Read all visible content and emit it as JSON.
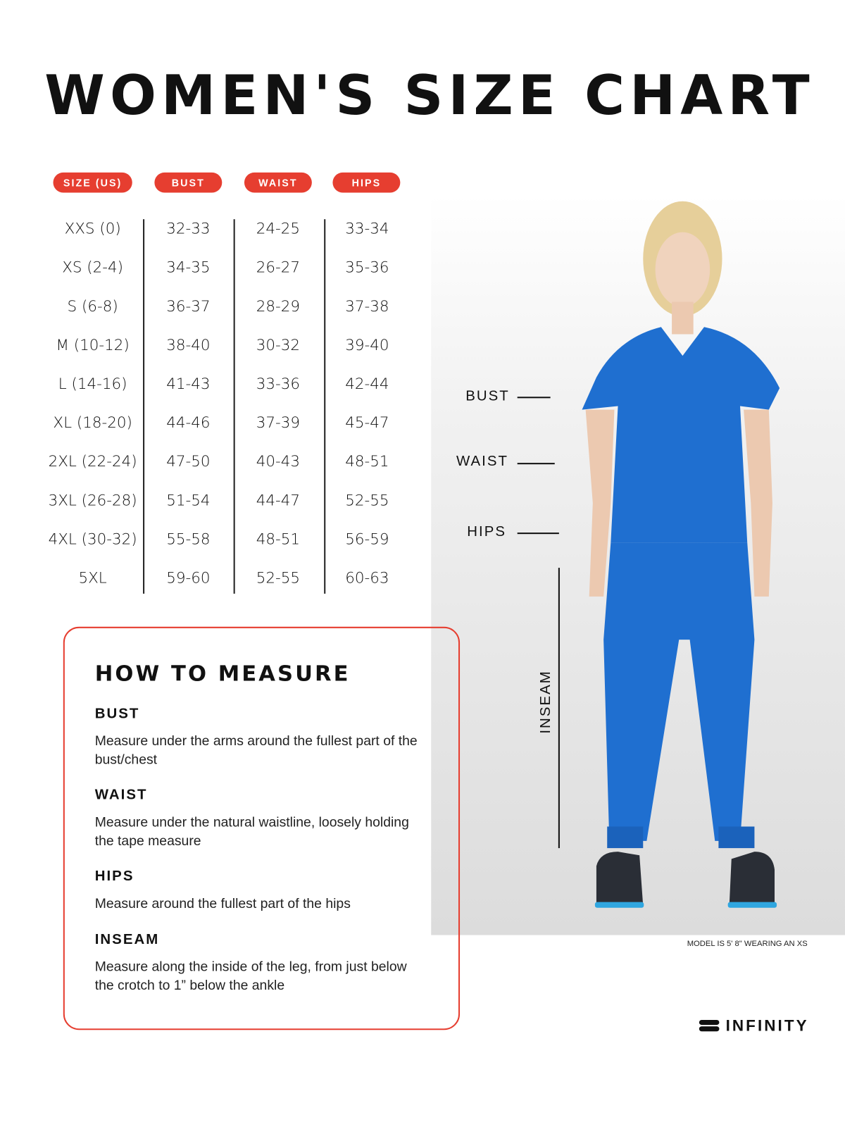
{
  "title": "WOMEN'S SIZE CHART",
  "headers": [
    "SIZE (US)",
    "BUST",
    "WAIST",
    "HIPS"
  ],
  "rows": [
    [
      "XXS (0)",
      "32-33",
      "24-25",
      "33-34"
    ],
    [
      "XS (2-4)",
      "34-35",
      "26-27",
      "35-36"
    ],
    [
      "S (6-8)",
      "36-37",
      "28-29",
      "37-38"
    ],
    [
      "M (10-12)",
      "38-40",
      "30-32",
      "39-40"
    ],
    [
      "L (14-16)",
      "41-43",
      "33-36",
      "42-44"
    ],
    [
      "XL (18-20)",
      "44-46",
      "37-39",
      "45-47"
    ],
    [
      "2XL (22-24)",
      "47-50",
      "40-43",
      "48-51"
    ],
    [
      "3XL (26-28)",
      "51-54",
      "44-47",
      "52-55"
    ],
    [
      "4XL (30-32)",
      "55-58",
      "48-51",
      "56-59"
    ],
    [
      "5XL",
      "59-60",
      "52-55",
      "60-63"
    ]
  ],
  "figure_labels": {
    "bust": "BUST",
    "waist": "WAIST",
    "hips": "HIPS",
    "inseam": "INSEAM"
  },
  "how_to": {
    "title": "HOW TO MEASURE",
    "items": [
      {
        "heading": "BUST",
        "text": "Measure under the arms around the fullest part of the bust/chest"
      },
      {
        "heading": "WAIST",
        "text": "Measure under the natural waistline, loosely holding the tape measure"
      },
      {
        "heading": "HIPS",
        "text": "Measure around the fullest part of the hips"
      },
      {
        "heading": "INSEAM",
        "text": "Measure along the inside of the leg, from just below the crotch to 1” below the ankle"
      }
    ]
  },
  "model_note": "MODEL IS 5' 8\" WEARING AN XS",
  "brand": "INFINITY",
  "colors": {
    "accent": "#e63e30",
    "garment": "#1f6fd0"
  }
}
